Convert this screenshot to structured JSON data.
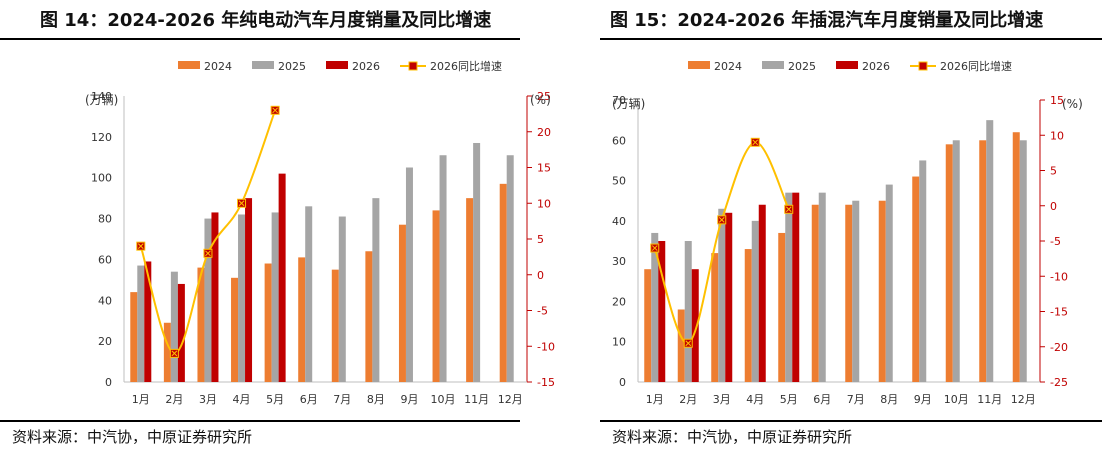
{
  "chart_data": [
    {
      "type": "bar",
      "title": "图 14：2024-2026 年纯电动汽车月度销量及同比增速",
      "source": "资料来源：中汽协，中原证券研究所",
      "y_unit_left": "(万辆)",
      "y_unit_right": "(%)",
      "categories": [
        "1月",
        "2月",
        "3月",
        "4月",
        "5月",
        "6月",
        "7月",
        "8月",
        "9月",
        "10月",
        "11月",
        "12月"
      ],
      "ylim_left": [
        0,
        140
      ],
      "yticks_left": [
        0,
        20,
        40,
        60,
        80,
        100,
        120,
        140
      ],
      "ylim_right": [
        -15,
        25
      ],
      "yticks_right": [
        -15,
        -10,
        -5,
        0,
        5,
        10,
        15,
        20,
        25
      ],
      "legend_position": "top",
      "series": [
        {
          "name": "2024",
          "type": "bar",
          "axis": "left",
          "color": "#ed7d31",
          "values": [
            44,
            29,
            56,
            51,
            58,
            61,
            55,
            64,
            77,
            84,
            90,
            97
          ]
        },
        {
          "name": "2025",
          "type": "bar",
          "axis": "left",
          "color": "#a5a5a5",
          "values": [
            57,
            54,
            80,
            82,
            83,
            86,
            81,
            90,
            105,
            111,
            117,
            111
          ]
        },
        {
          "name": "2026",
          "type": "bar",
          "axis": "left",
          "color": "#c00000",
          "values": [
            59,
            48,
            83,
            90,
            102,
            null,
            null,
            null,
            null,
            null,
            null,
            null
          ]
        },
        {
          "name": "2026同比增速",
          "type": "line",
          "axis": "right",
          "color": "#ffc000",
          "marker_color": "#c00000",
          "values": [
            4,
            -11,
            3,
            10,
            23,
            null,
            null,
            null,
            null,
            null,
            null,
            null
          ]
        }
      ]
    },
    {
      "type": "bar",
      "title": "图 15：2024-2026 年插混汽车月度销量及同比增速",
      "source": "资料来源：中汽协，中原证券研究所",
      "y_unit_left": "(万辆)",
      "y_unit_right": "(%)",
      "categories": [
        "1月",
        "2月",
        "3月",
        "4月",
        "5月",
        "6月",
        "7月",
        "8月",
        "9月",
        "10月",
        "11月",
        "12月"
      ],
      "ylim_left": [
        0,
        70
      ],
      "yticks_left": [
        0,
        10,
        20,
        30,
        40,
        50,
        60,
        70
      ],
      "ylim_right": [
        -25,
        15
      ],
      "yticks_right": [
        -25,
        -20,
        -15,
        -10,
        -5,
        0,
        5,
        10,
        15
      ],
      "legend_position": "top",
      "series": [
        {
          "name": "2024",
          "type": "bar",
          "axis": "left",
          "color": "#ed7d31",
          "values": [
            28,
            18,
            32,
            33,
            37,
            44,
            44,
            45,
            51,
            59,
            60,
            62
          ]
        },
        {
          "name": "2025",
          "type": "bar",
          "axis": "left",
          "color": "#a5a5a5",
          "values": [
            37,
            35,
            43,
            40,
            47,
            47,
            45,
            49,
            55,
            60,
            65,
            60
          ]
        },
        {
          "name": "2026",
          "type": "bar",
          "axis": "left",
          "color": "#c00000",
          "values": [
            35,
            28,
            42,
            44,
            47,
            null,
            null,
            null,
            null,
            null,
            null,
            null
          ]
        },
        {
          "name": "2026同比增速",
          "type": "line",
          "axis": "right",
          "color": "#ffc000",
          "marker_color": "#c00000",
          "values": [
            -6,
            -19.5,
            -2,
            9,
            -0.5,
            null,
            null,
            null,
            null,
            null,
            null,
            null
          ]
        }
      ]
    }
  ]
}
